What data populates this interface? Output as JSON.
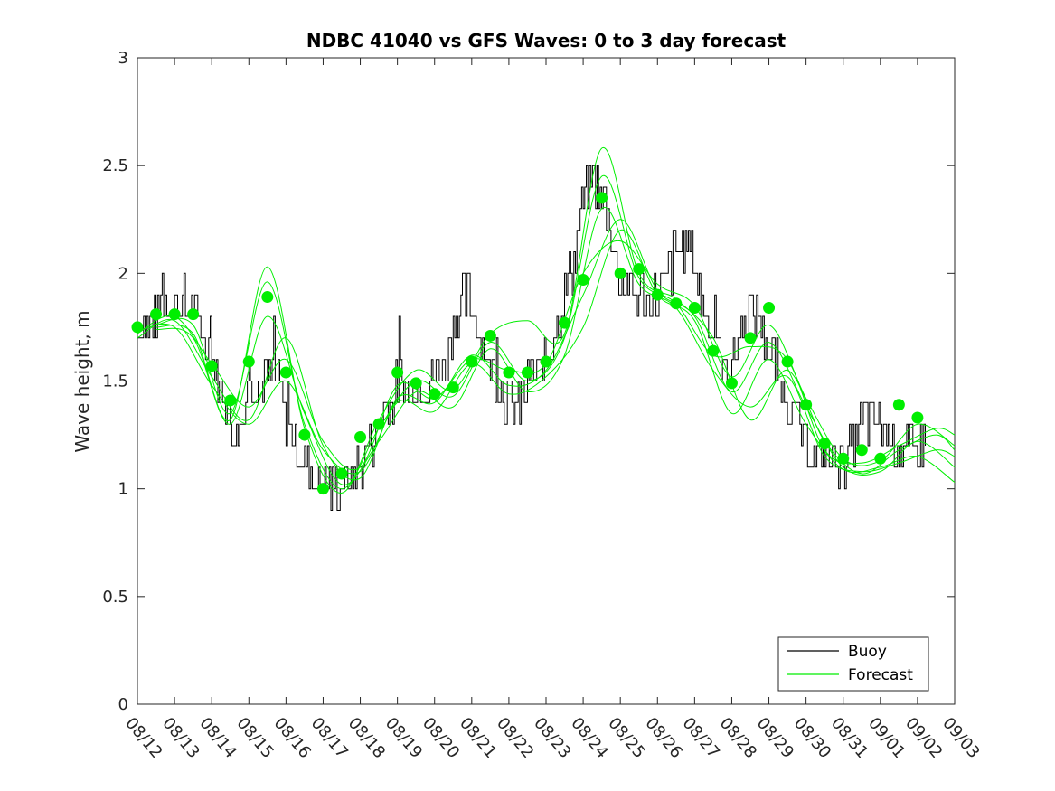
{
  "chart_data": {
    "type": "line",
    "title": "NDBC 41040 vs GFS Waves: 0 to 3 day forecast",
    "xlabel": "",
    "ylabel": "Wave height, m",
    "ylim": [
      0,
      3
    ],
    "yticks": [
      0,
      0.5,
      1,
      1.5,
      2,
      2.5,
      3
    ],
    "ytick_labels": [
      "0",
      "0.5",
      "1",
      "1.5",
      "2",
      "2.5",
      "3"
    ],
    "xlim_days": [
      0,
      22
    ],
    "xtick_labels": [
      "08/12",
      "08/13",
      "08/14",
      "08/15",
      "08/16",
      "08/17",
      "08/18",
      "08/19",
      "08/20",
      "08/21",
      "08/22",
      "08/23",
      "08/24",
      "08/25",
      "08/26",
      "08/27",
      "08/28",
      "08/29",
      "08/30",
      "08/31",
      "09/01",
      "09/02",
      "09/03"
    ],
    "legend": {
      "position": "bottom-right",
      "entries": [
        "Buoy",
        "Forecast"
      ]
    },
    "colors": {
      "buoy": "#000000",
      "forecast": "#00ee00",
      "axis": "#262626"
    },
    "buoy_anchor_points": {
      "x_days": [
        0,
        0.3,
        0.5,
        0.8,
        1.0,
        1.2,
        1.5,
        1.8,
        2.0,
        2.3,
        2.5,
        2.7,
        2.9,
        3.0,
        3.2,
        3.5,
        3.8,
        4.0,
        4.2,
        4.5,
        4.7,
        5.0,
        5.2,
        5.5,
        5.8,
        6.0,
        6.2,
        6.5,
        6.8,
        7.0,
        7.2,
        7.5,
        7.8,
        8.0,
        8.3,
        8.5,
        8.8,
        9.0,
        9.3,
        9.5,
        9.8,
        10.0,
        10.3,
        10.5,
        10.8,
        11.0,
        11.2,
        11.5,
        11.8,
        12.0,
        12.2,
        12.4,
        12.6,
        12.8,
        13.0,
        13.2,
        13.5,
        13.8,
        14.0,
        14.3,
        14.5,
        14.8,
        15.0,
        15.2,
        15.5,
        15.8,
        16.0,
        16.2,
        16.5,
        16.8,
        17.0,
        17.3,
        17.5,
        17.8,
        18.0,
        18.3,
        18.5,
        18.8,
        19.0,
        19.3,
        19.5,
        19.8,
        20.0,
        20.3,
        20.5,
        20.8,
        21.0,
        21.2
      ],
      "values": [
        1.75,
        1.75,
        1.8,
        1.85,
        1.85,
        1.85,
        1.85,
        1.7,
        1.6,
        1.45,
        1.3,
        1.25,
        1.4,
        1.55,
        1.5,
        1.55,
        1.5,
        1.3,
        1.2,
        1.1,
        1.05,
        1.05,
        1.0,
        1.0,
        1.05,
        1.1,
        1.2,
        1.3,
        1.4,
        1.5,
        1.45,
        1.5,
        1.45,
        1.5,
        1.6,
        1.75,
        1.9,
        1.85,
        1.65,
        1.55,
        1.45,
        1.4,
        1.4,
        1.5,
        1.55,
        1.6,
        1.75,
        1.9,
        2.1,
        2.35,
        2.45,
        2.4,
        2.3,
        2.15,
        1.95,
        1.95,
        1.9,
        1.85,
        1.9,
        2.0,
        2.1,
        2.15,
        2.05,
        1.85,
        1.7,
        1.55,
        1.55,
        1.7,
        1.85,
        1.75,
        1.65,
        1.5,
        1.4,
        1.3,
        1.2,
        1.15,
        1.15,
        1.15,
        1.1,
        1.2,
        1.3,
        1.35,
        1.3,
        1.25,
        1.2,
        1.2,
        1.2,
        1.2
      ]
    },
    "forecast_points": {
      "x_days": [
        0,
        0.5,
        1.0,
        1.5,
        2.0,
        2.5,
        3.0,
        3.5,
        4.0,
        4.5,
        5.0,
        5.5,
        6.0,
        6.5,
        7.0,
        7.5,
        8.0,
        8.5,
        9.0,
        9.5,
        10.0,
        10.5,
        11.0,
        11.5,
        12.0,
        12.5,
        13.0,
        13.5,
        14.0,
        14.5,
        15.0,
        15.5,
        16.0,
        16.5,
        17.0,
        17.5,
        18.0,
        18.5,
        19.0,
        19.5,
        20.0,
        20.5,
        21.0
      ],
      "values": [
        1.75,
        1.81,
        1.81,
        1.81,
        1.57,
        1.41,
        1.59,
        1.89,
        1.54,
        1.25,
        1.0,
        1.07,
        1.24,
        1.3,
        1.54,
        1.49,
        1.44,
        1.47,
        1.59,
        1.71,
        1.54,
        1.54,
        1.59,
        1.77,
        1.97,
        2.35,
        2.0,
        2.02,
        1.9,
        1.86,
        1.84,
        1.64,
        1.49,
        1.7,
        1.84,
        1.59,
        1.39,
        1.21,
        1.14,
        1.18,
        1.14,
        1.39,
        1.33
      ]
    },
    "forecast_runs": [
      {
        "x_days": [
          0,
          1.0,
          2.0,
          3.0,
          4.0,
          5.0,
          6.0,
          7.0,
          8.0,
          9.0,
          10.0,
          11.0,
          12.0,
          13.0,
          14.0,
          15.0,
          16.0,
          17.0,
          18.0,
          19.0,
          20.0,
          21.0,
          22.0
        ],
        "values": [
          1.72,
          1.8,
          1.58,
          1.38,
          1.6,
          1.22,
          1.1,
          1.48,
          1.42,
          1.6,
          1.55,
          1.58,
          2.0,
          2.15,
          1.95,
          1.85,
          1.52,
          1.76,
          1.42,
          1.14,
          1.13,
          1.3,
          1.2
        ]
      },
      {
        "x_days": [
          0.5,
          1.5,
          2.5,
          3.5,
          4.5,
          5.5,
          6.5,
          7.5,
          8.5,
          9.5,
          10.5,
          11.5,
          12.5,
          13.5,
          14.5,
          15.5,
          16.5,
          17.5,
          18.5,
          19.5,
          20.5,
          21.5,
          22.0
        ],
        "values": [
          1.76,
          1.76,
          1.35,
          1.96,
          1.3,
          1.0,
          1.28,
          1.5,
          1.43,
          1.68,
          1.5,
          1.7,
          2.45,
          1.98,
          1.86,
          1.62,
          1.66,
          1.6,
          1.18,
          1.12,
          1.2,
          1.28,
          1.25
        ]
      },
      {
        "x_days": [
          0,
          1.0,
          2.0,
          3.0,
          4.0,
          5.0,
          6.0,
          7.0,
          8.0,
          9.0,
          10.0,
          11.0,
          12.0,
          13.0,
          14.0,
          15.0,
          16.0,
          17.0,
          18.0,
          19.0,
          20.0,
          21.0,
          22.0
        ],
        "values": [
          1.7,
          1.78,
          1.52,
          1.32,
          1.7,
          1.2,
          1.05,
          1.42,
          1.4,
          1.62,
          1.48,
          1.55,
          1.9,
          2.25,
          1.92,
          1.8,
          1.45,
          1.68,
          1.38,
          1.1,
          1.08,
          1.22,
          1.1
        ]
      },
      {
        "x_days": [
          0.5,
          1.5,
          2.5,
          3.5,
          4.5,
          5.5,
          6.5,
          7.5,
          8.5,
          9.5,
          10.5,
          11.5,
          12.5,
          13.5,
          14.5,
          15.5,
          16.5,
          17.5,
          18.5,
          19.5,
          20.5,
          21.5,
          22.0
        ],
        "values": [
          1.74,
          1.7,
          1.3,
          1.8,
          1.35,
          1.02,
          1.22,
          1.45,
          1.38,
          1.65,
          1.45,
          1.62,
          2.3,
          1.95,
          1.84,
          1.55,
          1.38,
          1.52,
          1.15,
          1.08,
          1.12,
          1.18,
          1.15
        ]
      },
      {
        "x_days": [
          0,
          1.0,
          2.0,
          3.0,
          4.0,
          5.0,
          6.0,
          7.0,
          8.0,
          9.0,
          10.0,
          11.0,
          12.0,
          13.0,
          14.0,
          15.0,
          16.0,
          17.0,
          18.0,
          19.0,
          20.0,
          21.0,
          22.0
        ],
        "values": [
          1.73,
          1.75,
          1.48,
          1.3,
          1.5,
          1.18,
          1.08,
          1.4,
          1.36,
          1.58,
          1.44,
          1.52,
          1.75,
          2.2,
          1.9,
          1.78,
          1.35,
          1.6,
          1.3,
          1.09,
          1.1,
          1.15,
          1.03
        ]
      },
      {
        "x_days": [
          0.5,
          1.5,
          2.5,
          3.5,
          4.5,
          5.5,
          6.5,
          7.5,
          8.5,
          9.5,
          10.5,
          11.5,
          12.5,
          13.5,
          14.5,
          15.5,
          16.5,
          17.5,
          18.5,
          19.5,
          20.5,
          21.5,
          22.0
        ],
        "values": [
          1.75,
          1.72,
          1.32,
          2.03,
          1.28,
          0.98,
          1.32,
          1.55,
          1.46,
          1.72,
          1.78,
          1.72,
          2.58,
          2.0,
          1.88,
          1.7,
          1.32,
          1.55,
          1.22,
          1.07,
          1.18,
          1.25,
          1.18
        ]
      }
    ]
  }
}
